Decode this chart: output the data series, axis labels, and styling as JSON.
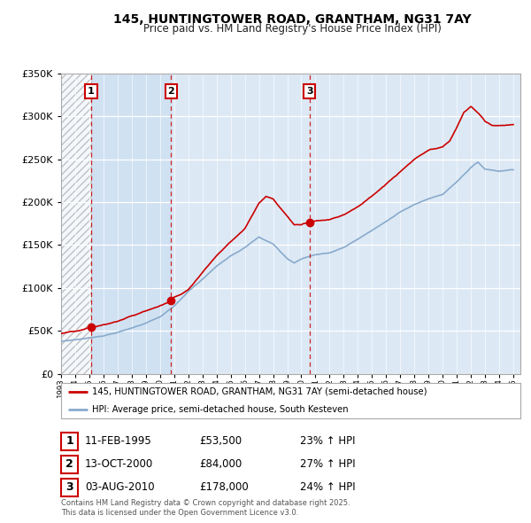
{
  "title": "145, HUNTINGTOWER ROAD, GRANTHAM, NG31 7AY",
  "subtitle": "Price paid vs. HM Land Registry's House Price Index (HPI)",
  "background_color": "#FFFFFF",
  "plot_bg_color": "#dce9f5",
  "highlight_bg_color": "#c8ddf0",
  "ylim": [
    0,
    350000
  ],
  "yticks": [
    0,
    50000,
    100000,
    150000,
    200000,
    250000,
    300000,
    350000
  ],
  "ytick_labels": [
    "£0",
    "£50K",
    "£100K",
    "£150K",
    "£200K",
    "£250K",
    "£300K",
    "£350K"
  ],
  "xmin": 1993,
  "xmax": 2025.5,
  "sale_events": [
    {
      "num": 1,
      "date": "11-FEB-1995",
      "price": 53500,
      "hpi_pct": "23% ↑ HPI",
      "year": 1995.12
    },
    {
      "num": 2,
      "date": "13-OCT-2000",
      "price": 84000,
      "hpi_pct": "27% ↑ HPI",
      "year": 2000.78
    },
    {
      "num": 3,
      "date": "03-AUG-2010",
      "price": 178000,
      "hpi_pct": "24% ↑ HPI",
      "year": 2010.58
    }
  ],
  "legend_line1": "145, HUNTINGTOWER ROAD, GRANTHAM, NG31 7AY (semi-detached house)",
  "legend_line2": "HPI: Average price, semi-detached house, South Kesteven",
  "footer_line1": "Contains HM Land Registry data © Crown copyright and database right 2025.",
  "footer_line2": "This data is licensed under the Open Government Licence v3.0.",
  "red_color": "#cc0000",
  "blue_color": "#88aacc",
  "hatch_color": "#aaaaaa",
  "table_rows": [
    {
      "num": 1,
      "date": "11-FEB-1995",
      "price": "£53,500",
      "hpi": "23% ↑ HPI"
    },
    {
      "num": 2,
      "date": "13-OCT-2000",
      "price": "£84,000",
      "hpi": "27% ↑ HPI"
    },
    {
      "num": 3,
      "date": "03-AUG-2010",
      "price": "£178,000",
      "hpi": "24% ↑ HPI"
    }
  ]
}
